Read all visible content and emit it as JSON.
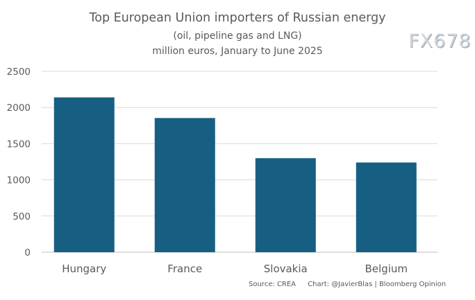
{
  "chart_data": {
    "type": "bar",
    "title": "Top European Union importers of Russian energy",
    "subtitle": [
      "(oil, pipeline gas and LNG)",
      "million euros, January to June 2025"
    ],
    "categories": [
      "Hungary",
      "France",
      "Slovakia",
      "Belgium"
    ],
    "values": [
      2140,
      1855,
      1300,
      1240
    ],
    "xlabel": "",
    "ylabel": "",
    "ylim": [
      0,
      2500
    ],
    "yticks": [
      0,
      500,
      1000,
      1500,
      2000,
      2500
    ],
    "grid": true,
    "bar_color": "#175f82",
    "grid_color": "#d9d9d9"
  },
  "footer": {
    "source": "Source: CREA",
    "credit": "Chart: @JavierBlas | Bloomberg Opinion"
  },
  "watermark": "FX678"
}
